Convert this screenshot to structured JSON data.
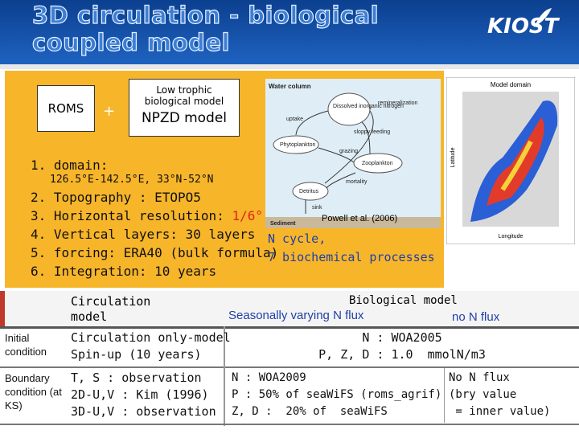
{
  "header": {
    "title_line1": "3D circulation - biological",
    "title_line2": "coupled model",
    "logo": "KIOST"
  },
  "model_boxes": {
    "roms": "ROMS",
    "plus": "+",
    "bio_small": "Low trophic biological model",
    "bio_large": "NPZD model"
  },
  "setup_list": [
    {
      "text": "1. domain:"
    },
    {
      "text": "126.5°E-142.5°E, 33°N-52°N"
    },
    {
      "text": "2. Topography : ETOPO5"
    },
    {
      "text": "3. Horizontal resolution: ",
      "highlight": "1/6°"
    },
    {
      "text": "4. Vertical layers: 30 layers"
    },
    {
      "text": "5. forcing: ERA40 (bulk formula)"
    },
    {
      "text": "6. Integration: 10 years"
    }
  ],
  "diagram": {
    "water_column": "Water column",
    "din": "Dissolved inorganic nitrogen",
    "remineralization": "remineralization",
    "uptake": "uptake",
    "phytoplankton": "Phytoplankton",
    "sloppy": "sloppy feeding",
    "grazing": "grazing",
    "zooplankton": "Zooplankton",
    "mortality": "mortality",
    "detritus": "Detritus",
    "sink": "sink",
    "sediment": "Sediment",
    "citation": "Powell et al. (2006)"
  },
  "ncycle": {
    "line1": "N cycle,",
    "line2": "7 biochemical processes"
  },
  "map": {
    "title": "Model domain",
    "xlabel": "Longitude",
    "ylabel": "Latitude"
  },
  "table": {
    "header": {
      "circulation": "Circulation model",
      "biological": "Biological model",
      "seasonal": "Seasonally varying  N flux",
      "no_flux": "no N flux"
    },
    "rows": [
      {
        "label": "Initial condition",
        "circulation": [
          "Circulation only-model",
          "Spin-up (10 years)"
        ],
        "biological": [
          "N : WOA2005",
          "P, Z, D : 1.0  mmolN/m3"
        ]
      },
      {
        "label": "Boundary condition (at KS)",
        "circulation": [
          "T, S : observation",
          "2D-U,V : Kim (1996)",
          "3D-U,V : observation"
        ],
        "seasonal": [
          "N : WOA2009",
          "P : 50% of seaWiFS (roms_agrif)",
          "Z, D :  20% of  seaWiFS"
        ],
        "no_flux": [
          "No N flux",
          "(bry value",
          " = inner value)"
        ]
      }
    ]
  }
}
